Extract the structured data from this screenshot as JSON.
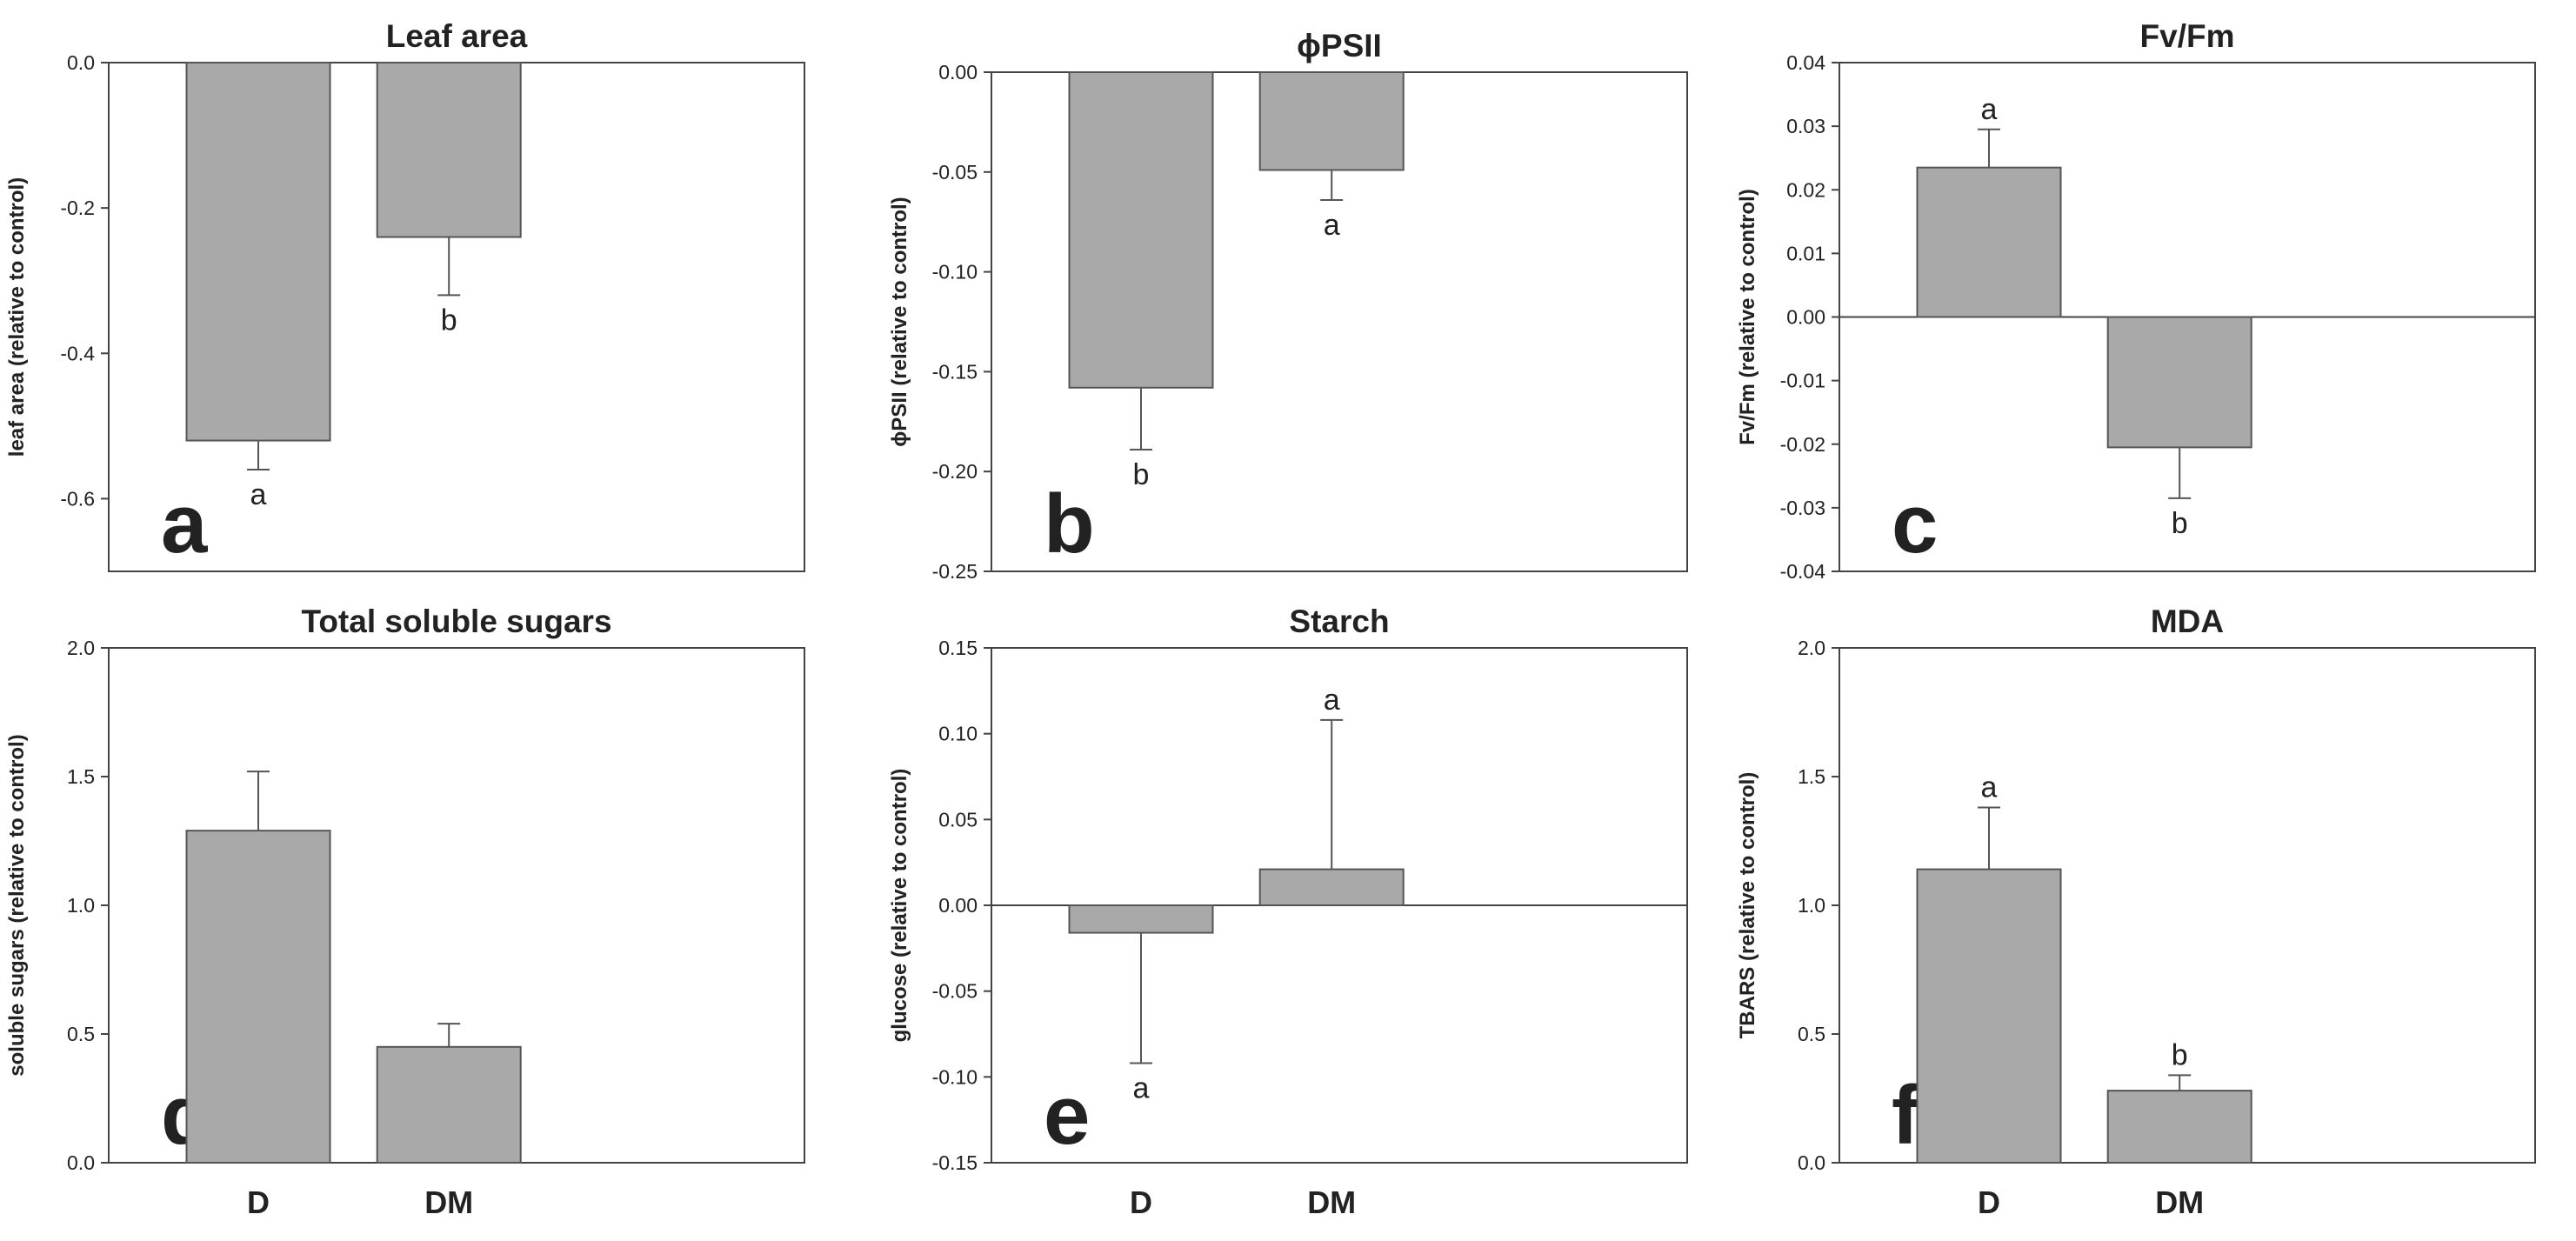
{
  "figure": {
    "bar_color": "#a9a9a9",
    "bar_stroke": "#555555",
    "axis_color": "#444444"
  },
  "chart_data": [
    {
      "type": "bar",
      "panel": "a",
      "title": "Leaf area",
      "ylabel": "leaf area (relative to control)",
      "categories": [
        "D",
        "DM"
      ],
      "values": [
        -0.52,
        -0.24
      ],
      "errors": [
        0.04,
        0.08
      ],
      "significance": [
        "a",
        "b"
      ],
      "ylim": [
        -0.7,
        0.0
      ],
      "yticks": [
        0.0,
        -0.2,
        -0.4,
        -0.6
      ],
      "ytick_labels": [
        "0.0",
        "-0.2",
        "-0.4",
        "-0.6"
      ],
      "show_category_labels": false
    },
    {
      "type": "bar",
      "panel": "b",
      "title": "ϕPSII",
      "ylabel": "ϕPSII (relative to control)",
      "categories": [
        "D",
        "DM"
      ],
      "values": [
        -0.158,
        -0.049
      ],
      "errors": [
        0.031,
        0.015
      ],
      "significance": [
        "b",
        "a"
      ],
      "ylim": [
        -0.25,
        0.0
      ],
      "yticks": [
        0.0,
        -0.05,
        -0.1,
        -0.15,
        -0.2,
        -0.25
      ],
      "ytick_labels": [
        "0.00",
        "-0.05",
        "-0.10",
        "-0.15",
        "-0.20",
        "-0.25"
      ],
      "show_category_labels": false
    },
    {
      "type": "bar",
      "panel": "c",
      "title": "Fv/Fm",
      "ylabel": "Fv/Fm (relative to control)",
      "categories": [
        "D",
        "DM"
      ],
      "values": [
        0.0235,
        -0.0205
      ],
      "errors": [
        0.006,
        0.008
      ],
      "significance": [
        "a",
        "b"
      ],
      "ylim": [
        -0.04,
        0.04
      ],
      "yticks": [
        0.04,
        0.03,
        0.02,
        0.01,
        0.0,
        -0.01,
        -0.02,
        -0.03,
        -0.04
      ],
      "ytick_labels": [
        "0.04",
        "0.03",
        "0.02",
        "0.01",
        "0.00",
        "-0.01",
        "-0.02",
        "-0.03",
        "-0.04"
      ],
      "show_category_labels": false
    },
    {
      "type": "bar",
      "panel": "d",
      "title": "Total soluble sugars",
      "ylabel": "soluble sugars (relative to control)",
      "categories": [
        "D",
        "DM"
      ],
      "values": [
        1.29,
        0.45
      ],
      "errors": [
        0.23,
        0.09
      ],
      "significance": [
        "",
        ""
      ],
      "ylim": [
        0.0,
        2.0
      ],
      "yticks": [
        2.0,
        1.5,
        1.0,
        0.5,
        0.0
      ],
      "ytick_labels": [
        "2.0",
        "1.5",
        "1.0",
        "0.5",
        "0.0"
      ],
      "show_category_labels": true
    },
    {
      "type": "bar",
      "panel": "e",
      "title": "Starch",
      "ylabel": "glucose (relative to control)",
      "categories": [
        "D",
        "DM"
      ],
      "values": [
        -0.016,
        0.021
      ],
      "errors": [
        0.076,
        0.087
      ],
      "significance": [
        "a",
        "a"
      ],
      "ylim": [
        -0.15,
        0.15
      ],
      "yticks": [
        0.15,
        0.1,
        0.05,
        0.0,
        -0.05,
        -0.1,
        -0.15
      ],
      "ytick_labels": [
        "0.15",
        "0.10",
        "0.05",
        "0.00",
        "-0.05",
        "-0.10",
        "-0.15"
      ],
      "show_category_labels": true
    },
    {
      "type": "bar",
      "panel": "f",
      "title": "MDA",
      "ylabel": "TBARS (relative to control)",
      "categories": [
        "D",
        "DM"
      ],
      "values": [
        1.14,
        0.28
      ],
      "errors": [
        0.24,
        0.06
      ],
      "significance": [
        "a",
        "b"
      ],
      "ylim": [
        0.0,
        2.0
      ],
      "yticks": [
        2.0,
        1.5,
        1.0,
        0.5,
        0.0
      ],
      "ytick_labels": [
        "2.0",
        "1.5",
        "1.0",
        "0.5",
        "0.0"
      ],
      "show_category_labels": true
    }
  ]
}
